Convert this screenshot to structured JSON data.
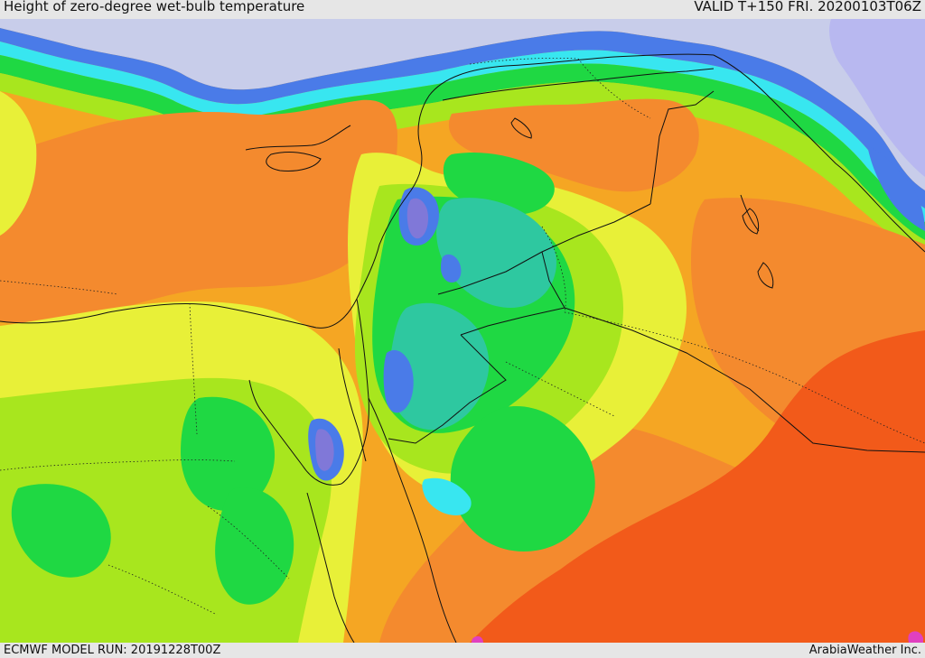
{
  "header": {
    "title": "Height of zero-degree wet-bulb temperature",
    "valid": "VALID T+150 FRI. 20200103T06Z"
  },
  "footer": {
    "model_run": "ECMWF MODEL RUN: 20191228T00Z",
    "credit": "ArabiaWeather Inc."
  },
  "palette": {
    "background": "#f5a623",
    "sea": "#c8cdea",
    "deep_orange": "#f48a2e",
    "red_orange": "#f25a1a",
    "orange": "#f7a71a",
    "yellow": "#e8f038",
    "yellow_green": "#a8e61e",
    "green": "#1fd843",
    "teal": "#2ec8a0",
    "cyan": "#38e6f0",
    "blue": "#4a7be8",
    "purple": "#8078d8",
    "lavender": "#b8b8f0",
    "magenta": "#e040c0"
  }
}
